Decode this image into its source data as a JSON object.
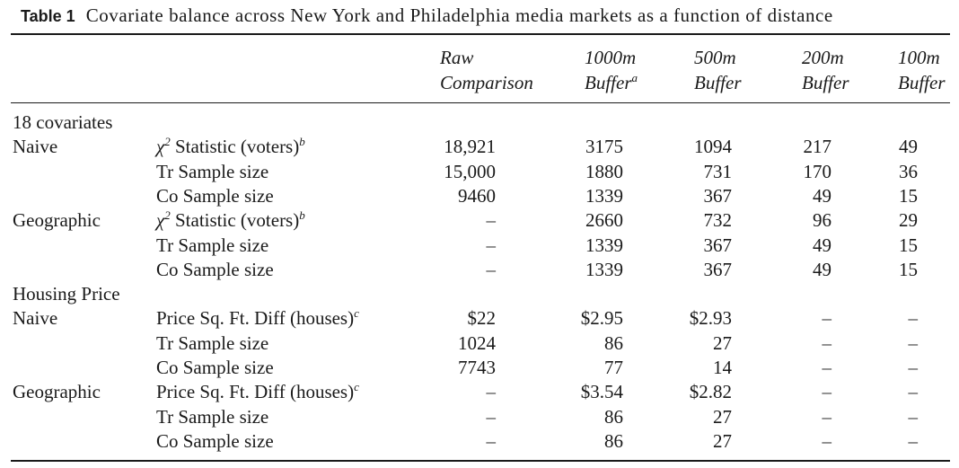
{
  "caption": {
    "label": "Table 1",
    "text": "Covariate balance across New York and Philadelphia media markets as a function of distance"
  },
  "columns": [
    {
      "line1": "Raw",
      "line2": "Comparison",
      "sup": ""
    },
    {
      "line1": "1000m",
      "line2": "Buffer",
      "sup": "a"
    },
    {
      "line1": "500m",
      "line2": "Buffer",
      "sup": ""
    },
    {
      "line1": "200m",
      "line2": "Buffer",
      "sup": ""
    },
    {
      "line1": "100m",
      "line2": "Buffer",
      "sup": ""
    }
  ],
  "rows": [
    {
      "group": "18 covariates",
      "label": "",
      "values": [
        "",
        "",
        "",
        "",
        ""
      ]
    },
    {
      "group": "Naive",
      "label": "Statistic (voters)",
      "chi": true,
      "sup": "b",
      "values": [
        "18,921",
        "3175",
        "1094",
        "217",
        "49"
      ]
    },
    {
      "group": "",
      "label": "Tr Sample size",
      "values": [
        "15,000",
        "1880",
        "731",
        "170",
        "36"
      ]
    },
    {
      "group": "",
      "label": "Co Sample size",
      "values": [
        "9460",
        "1339",
        "367",
        "49",
        "15"
      ]
    },
    {
      "group": "Geographic",
      "label": "Statistic (voters)",
      "chi": true,
      "sup": "b",
      "values": [
        "–",
        "2660",
        "732",
        "96",
        "29"
      ]
    },
    {
      "group": "",
      "label": "Tr Sample size",
      "values": [
        "–",
        "1339",
        "367",
        "49",
        "15"
      ]
    },
    {
      "group": "",
      "label": "Co Sample size",
      "values": [
        "–",
        "1339",
        "367",
        "49",
        "15"
      ]
    },
    {
      "group": "Housing Price",
      "label": "",
      "values": [
        "",
        "",
        "",
        "",
        ""
      ]
    },
    {
      "group": "Naive",
      "label": "Price Sq. Ft. Diff (houses)",
      "sup": "c",
      "values": [
        "$22",
        "$2.95",
        "$2.93",
        "–",
        "–"
      ]
    },
    {
      "group": "",
      "label": "Tr Sample size",
      "values": [
        "1024",
        "86",
        "27",
        "–",
        "–"
      ]
    },
    {
      "group": "",
      "label": "Co Sample size",
      "values": [
        "7743",
        "77",
        "14",
        "–",
        "–"
      ]
    },
    {
      "group": "Geographic",
      "label": "Price Sq. Ft. Diff (houses)",
      "sup": "c",
      "values": [
        "–",
        "$3.54",
        "$2.82",
        "–",
        "–"
      ]
    },
    {
      "group": "",
      "label": "Tr Sample size",
      "values": [
        "–",
        "86",
        "27",
        "–",
        "–"
      ]
    },
    {
      "group": "",
      "label": "Co Sample size",
      "values": [
        "–",
        "86",
        "27",
        "–",
        "–"
      ]
    }
  ]
}
